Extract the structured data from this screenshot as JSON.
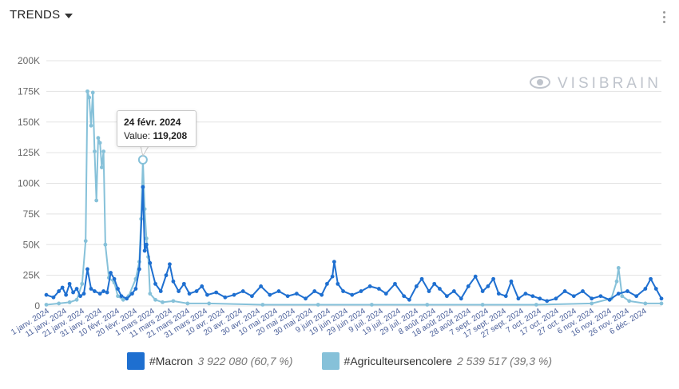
{
  "header": {
    "title": "TRENDS"
  },
  "watermark": "VISIBRAIN",
  "colors": {
    "macron": "#1e6fd0",
    "agri": "#86c1d9",
    "grid": "#e3e3e3"
  },
  "tooltip": {
    "date": "24 févr. 2024",
    "value_label": "Value:",
    "value": "119,208"
  },
  "legend": [
    {
      "name": "#Macron",
      "total": "3 922 080 (60,7 %)",
      "color": "#1e6fd0"
    },
    {
      "name": "#Agriculteursencolere",
      "total": "2 539 517 (39,3 %)",
      "color": "#86c1d9"
    }
  ],
  "chart_data": {
    "type": "line",
    "ylim": [
      0,
      200000
    ],
    "y_ticks": [
      "0",
      "25K",
      "50K",
      "75K",
      "100K",
      "125K",
      "150K",
      "175K",
      "200K"
    ],
    "x_ticks": [
      "1 janv. 2024",
      "11 janv. 2024",
      "21 janv. 2024",
      "31 janv. 2024",
      "10 févr. 2024",
      "20 févr. 2024",
      "1 mars 2024",
      "11 mars 2024",
      "21 mars 2024",
      "31 mars 2024",
      "10 avr. 2024",
      "20 avr. 2024",
      "30 avr. 2024",
      "10 mai 2024",
      "20 mai 2024",
      "30 mai 2024",
      "9 juin 2024",
      "19 juin 2024",
      "29 juin 2024",
      "9 juil. 2024",
      "19 juil. 2024",
      "29 juil. 2024",
      "8 août 2024",
      "18 août 2024",
      "28 août 2024",
      "7 sept. 2024",
      "17 sept. 2024",
      "27 sept. 2024",
      "7 oct. 2024",
      "17 oct. 2024",
      "27 oct. 2024",
      "6 nov. 2024",
      "16 nov. 2024",
      "26 nov. 2024",
      "6 déc. 2024"
    ],
    "x_start": "2024-01-01",
    "x_end": "2024-12-10",
    "series": [
      {
        "name": "#Macron",
        "points": [
          [
            "2024-01-01",
            9000
          ],
          [
            "2024-01-05",
            7000
          ],
          [
            "2024-01-08",
            12000
          ],
          [
            "2024-01-10",
            15000
          ],
          [
            "2024-01-12",
            9000
          ],
          [
            "2024-01-14",
            18000
          ],
          [
            "2024-01-16",
            11000
          ],
          [
            "2024-01-18",
            14000
          ],
          [
            "2024-01-20",
            8000
          ],
          [
            "2024-01-22",
            10000
          ],
          [
            "2024-01-24",
            30000
          ],
          [
            "2024-01-26",
            14000
          ],
          [
            "2024-01-28",
            12000
          ],
          [
            "2024-01-31",
            10000
          ],
          [
            "2024-02-02",
            12000
          ],
          [
            "2024-02-04",
            11000
          ],
          [
            "2024-02-06",
            27000
          ],
          [
            "2024-02-08",
            22000
          ],
          [
            "2024-02-10",
            14000
          ],
          [
            "2024-02-12",
            8000
          ],
          [
            "2024-02-15",
            6000
          ],
          [
            "2024-02-18",
            10000
          ],
          [
            "2024-02-20",
            14000
          ],
          [
            "2024-02-22",
            30000
          ],
          [
            "2024-02-24",
            97000
          ],
          [
            "2024-02-25",
            45000
          ],
          [
            "2024-02-26",
            50000
          ],
          [
            "2024-02-28",
            35000
          ],
          [
            "2024-03-02",
            18000
          ],
          [
            "2024-03-05",
            12000
          ],
          [
            "2024-03-08",
            25000
          ],
          [
            "2024-03-10",
            34000
          ],
          [
            "2024-03-12",
            20000
          ],
          [
            "2024-03-15",
            12000
          ],
          [
            "2024-03-18",
            18000
          ],
          [
            "2024-03-21",
            10000
          ],
          [
            "2024-03-25",
            12000
          ],
          [
            "2024-03-28",
            16000
          ],
          [
            "2024-03-31",
            9000
          ],
          [
            "2024-04-05",
            11000
          ],
          [
            "2024-04-10",
            7000
          ],
          [
            "2024-04-15",
            9000
          ],
          [
            "2024-04-20",
            12000
          ],
          [
            "2024-04-25",
            8000
          ],
          [
            "2024-04-30",
            16000
          ],
          [
            "2024-05-05",
            9000
          ],
          [
            "2024-05-10",
            12000
          ],
          [
            "2024-05-15",
            8000
          ],
          [
            "2024-05-20",
            10000
          ],
          [
            "2024-05-25",
            6000
          ],
          [
            "2024-05-30",
            12000
          ],
          [
            "2024-06-03",
            9000
          ],
          [
            "2024-06-06",
            18000
          ],
          [
            "2024-06-09",
            24000
          ],
          [
            "2024-06-10",
            36000
          ],
          [
            "2024-06-12",
            18000
          ],
          [
            "2024-06-15",
            12000
          ],
          [
            "2024-06-20",
            9000
          ],
          [
            "2024-06-25",
            12000
          ],
          [
            "2024-06-30",
            16000
          ],
          [
            "2024-07-05",
            14000
          ],
          [
            "2024-07-09",
            10000
          ],
          [
            "2024-07-14",
            18000
          ],
          [
            "2024-07-19",
            8000
          ],
          [
            "2024-07-22",
            5000
          ],
          [
            "2024-07-26",
            16000
          ],
          [
            "2024-07-29",
            22000
          ],
          [
            "2024-08-02",
            12000
          ],
          [
            "2024-08-05",
            18000
          ],
          [
            "2024-08-08",
            14000
          ],
          [
            "2024-08-12",
            8000
          ],
          [
            "2024-08-16",
            12000
          ],
          [
            "2024-08-20",
            6000
          ],
          [
            "2024-08-24",
            16000
          ],
          [
            "2024-08-28",
            24000
          ],
          [
            "2024-09-01",
            12000
          ],
          [
            "2024-09-04",
            16000
          ],
          [
            "2024-09-07",
            22000
          ],
          [
            "2024-09-10",
            10000
          ],
          [
            "2024-09-14",
            8000
          ],
          [
            "2024-09-17",
            20000
          ],
          [
            "2024-09-21",
            6000
          ],
          [
            "2024-09-25",
            10000
          ],
          [
            "2024-09-29",
            8000
          ],
          [
            "2024-10-03",
            6000
          ],
          [
            "2024-10-07",
            4000
          ],
          [
            "2024-10-12",
            6000
          ],
          [
            "2024-10-17",
            12000
          ],
          [
            "2024-10-22",
            8000
          ],
          [
            "2024-10-27",
            12000
          ],
          [
            "2024-11-01",
            6000
          ],
          [
            "2024-11-06",
            8000
          ],
          [
            "2024-11-11",
            5000
          ],
          [
            "2024-11-16",
            10000
          ],
          [
            "2024-11-21",
            12000
          ],
          [
            "2024-11-26",
            8000
          ],
          [
            "2024-12-01",
            14000
          ],
          [
            "2024-12-04",
            22000
          ],
          [
            "2024-12-07",
            14000
          ],
          [
            "2024-12-10",
            6000
          ]
        ]
      },
      {
        "name": "#Agriculteursencolere",
        "points": [
          [
            "2024-01-01",
            1000
          ],
          [
            "2024-01-08",
            2000
          ],
          [
            "2024-01-14",
            3000
          ],
          [
            "2024-01-18",
            5000
          ],
          [
            "2024-01-21",
            18000
          ],
          [
            "2024-01-23",
            53000
          ],
          [
            "2024-01-24",
            175000
          ],
          [
            "2024-01-25",
            170000
          ],
          [
            "2024-01-26",
            147000
          ],
          [
            "2024-01-27",
            174000
          ],
          [
            "2024-01-28",
            126000
          ],
          [
            "2024-01-29",
            86000
          ],
          [
            "2024-01-30",
            137000
          ],
          [
            "2024-01-31",
            133000
          ],
          [
            "2024-02-01",
            113000
          ],
          [
            "2024-02-02",
            126000
          ],
          [
            "2024-02-03",
            50000
          ],
          [
            "2024-02-05",
            23000
          ],
          [
            "2024-02-08",
            19000
          ],
          [
            "2024-02-10",
            8000
          ],
          [
            "2024-02-13",
            5000
          ],
          [
            "2024-02-16",
            8000
          ],
          [
            "2024-02-20",
            22000
          ],
          [
            "2024-02-22",
            36000
          ],
          [
            "2024-02-23",
            71000
          ],
          [
            "2024-02-24",
            119208
          ],
          [
            "2024-02-25",
            79000
          ],
          [
            "2024-02-26",
            55000
          ],
          [
            "2024-02-27",
            40000
          ],
          [
            "2024-02-28",
            10000
          ],
          [
            "2024-03-02",
            5000
          ],
          [
            "2024-03-06",
            3000
          ],
          [
            "2024-03-12",
            4000
          ],
          [
            "2024-03-20",
            2000
          ],
          [
            "2024-04-01",
            2000
          ],
          [
            "2024-05-01",
            1000
          ],
          [
            "2024-06-01",
            1000
          ],
          [
            "2024-07-01",
            1000
          ],
          [
            "2024-08-01",
            1000
          ],
          [
            "2024-09-01",
            1000
          ],
          [
            "2024-10-01",
            1000
          ],
          [
            "2024-11-01",
            2000
          ],
          [
            "2024-11-12",
            6000
          ],
          [
            "2024-11-15",
            20000
          ],
          [
            "2024-11-16",
            31000
          ],
          [
            "2024-11-18",
            8000
          ],
          [
            "2024-11-22",
            4000
          ],
          [
            "2024-12-01",
            2000
          ],
          [
            "2024-12-10",
            2000
          ]
        ]
      }
    ],
    "highlight": {
      "series": "#Agriculteursencolere",
      "x": "2024-02-24",
      "y": 119208
    }
  }
}
